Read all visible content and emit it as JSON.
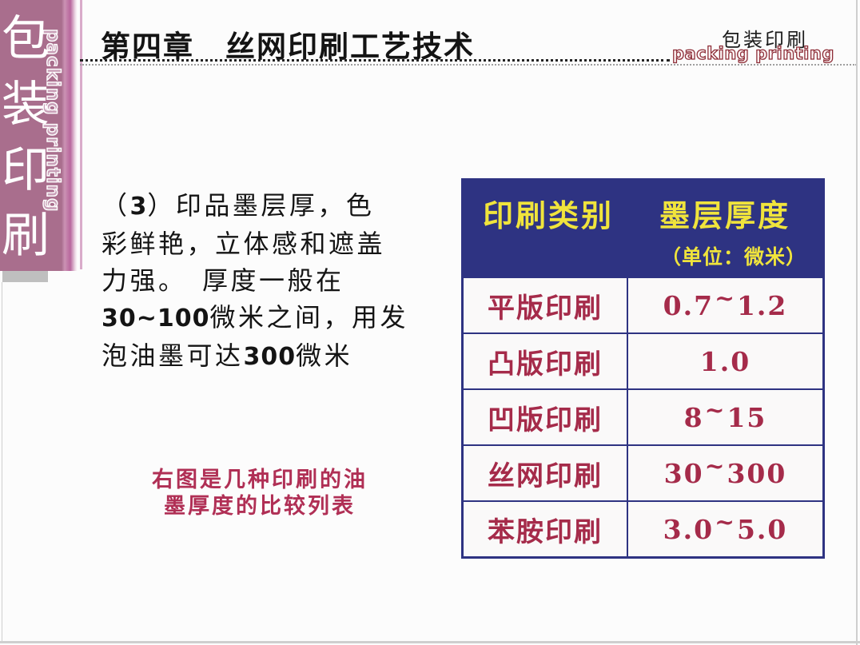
{
  "colors": {
    "page_bg": "#fcfcfc",
    "sidebar_mauve": "#a96e8d",
    "strip_pink_light": "#cb92b4",
    "strip_magenta": "#b8679d",
    "strip_pale": "#ecd9e4",
    "edge_line_pink": "#d9abca",
    "shadow_gray": "#bfbfbf",
    "frame_gray": "#cfcfcf",
    "navy": "#2e3382",
    "header_yellow": "#f0e43c",
    "table_red": "#a52b4a",
    "caption_red": "#b02f55",
    "text_black": "#141414",
    "logo_maroon": "#8e2e38"
  },
  "sidebar": {
    "vertical_title": "包装印刷",
    "vertical_subtitle": "packing printing"
  },
  "header": {
    "title": "第四章　丝网印刷工艺技术",
    "logo": {
      "title": "包装印刷",
      "subtitle": "packing printing"
    }
  },
  "main": {
    "paragraph_lines": [
      [
        {
          "t": "（",
          "b": 0
        },
        {
          "t": "3",
          "b": 1
        },
        {
          "t": "）印品墨层厚，色",
          "b": 0
        }
      ],
      [
        {
          "t": "彩鲜艳，立体感和遮盖",
          "b": 0
        }
      ],
      [
        {
          "t": "力强。　厚度一般在",
          "b": 0
        }
      ],
      [
        {
          "t": "30~100",
          "b": 1
        },
        {
          "t": "微米之间，用发",
          "b": 0
        }
      ],
      [
        {
          "t": "泡油墨可达",
          "b": 0
        },
        {
          "t": "300",
          "b": 1
        },
        {
          "t": "微米",
          "b": 0
        }
      ]
    ],
    "caption_line1": "右图是几种印刷的油",
    "caption_line2": "墨厚度的比较列表"
  },
  "table": {
    "header": {
      "category": "印刷类别",
      "thickness": "墨层厚度",
      "unit": "（单位：微米）"
    },
    "rows": [
      {
        "category": "平版印刷",
        "value": "0.7~1.2"
      },
      {
        "category": "凸版印刷",
        "value": "1.0"
      },
      {
        "category": "凹版印刷",
        "value": "8~15"
      },
      {
        "category": "丝网印刷",
        "value": "30~300"
      },
      {
        "category": "苯胺印刷",
        "value": "3.0~5.0"
      }
    ]
  }
}
